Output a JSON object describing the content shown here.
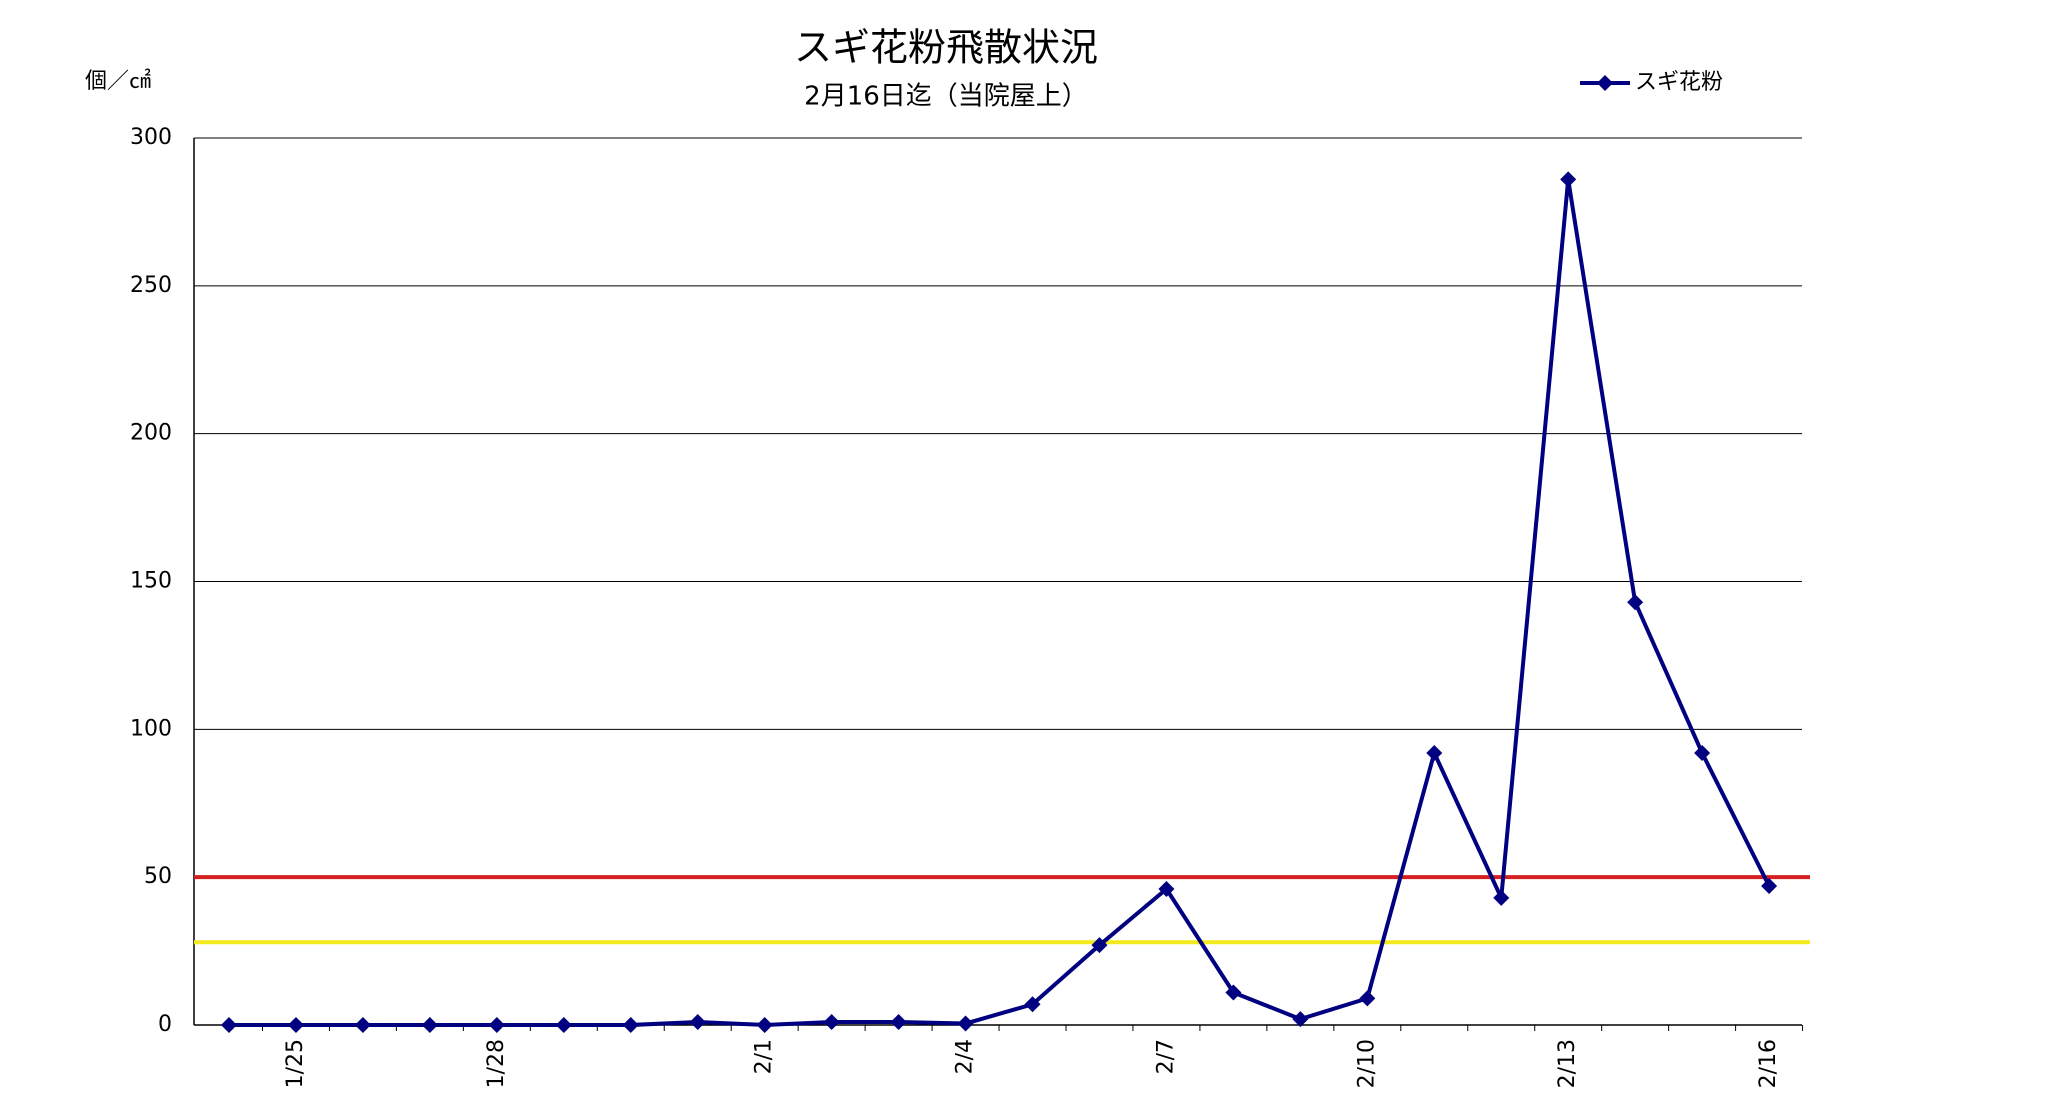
{
  "chart_data": {
    "type": "line",
    "title": "スギ花粉飛散状況",
    "subtitle": "2月16日迄（当院屋上）",
    "y_label": "個／㎠",
    "categories": [
      null,
      "1/25",
      null,
      null,
      "1/28",
      null,
      null,
      null,
      "2/1",
      null,
      null,
      "2/4",
      null,
      null,
      "2/7",
      null,
      null,
      "2/10",
      null,
      null,
      "2/13",
      null,
      null,
      "2/16"
    ],
    "series": [
      {
        "name": "スギ花粉",
        "color": "#000080",
        "values": [
          0,
          0,
          0,
          0,
          0,
          0,
          0,
          1,
          0,
          1,
          1,
          0.5,
          7,
          27,
          46,
          11,
          2,
          9,
          92,
          43,
          286,
          143,
          92,
          47
        ]
      }
    ],
    "reference_lines": [
      {
        "value": 50,
        "color": "#d42020"
      },
      {
        "value": 28,
        "color": "#f2ea1c"
      }
    ],
    "ylim": [
      0,
      300
    ],
    "yticks": [
      0,
      50,
      100,
      150,
      200,
      250,
      300
    ],
    "grid": true,
    "legend": "top-right"
  }
}
